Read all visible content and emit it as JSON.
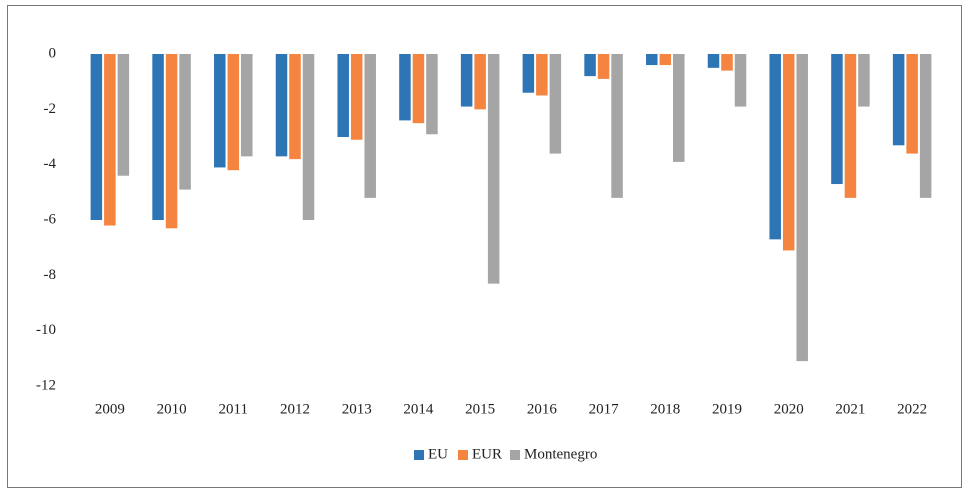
{
  "chart_data": {
    "type": "bar",
    "categories": [
      "2009",
      "2010",
      "2011",
      "2012",
      "2013",
      "2014",
      "2015",
      "2016",
      "2017",
      "2018",
      "2019",
      "2020",
      "2021",
      "2022"
    ],
    "series": [
      {
        "name": "EU",
        "color": "#2e75b6",
        "values": [
          -6.0,
          -6.0,
          -4.1,
          -3.7,
          -3.0,
          -2.4,
          -1.9,
          -1.4,
          -0.8,
          -0.4,
          -0.5,
          -6.7,
          -4.7,
          -3.3
        ]
      },
      {
        "name": "EUR",
        "color": "#f4843f",
        "values": [
          -6.2,
          -6.3,
          -4.2,
          -3.8,
          -3.1,
          -2.5,
          -2.0,
          -1.5,
          -0.9,
          -0.4,
          -0.6,
          -7.1,
          -5.2,
          -3.6
        ]
      },
      {
        "name": "Montenegro",
        "color": "#a5a5a5",
        "values": [
          -4.4,
          -4.9,
          -3.7,
          -6.0,
          -5.2,
          -2.9,
          -8.3,
          -3.6,
          -5.2,
          -3.9,
          -1.9,
          -11.1,
          -1.9,
          -5.2
        ]
      }
    ],
    "ylim": [
      -12,
      0
    ],
    "yticks": [
      0,
      -2,
      -4,
      -6,
      -8,
      -10,
      -12
    ],
    "grid": false,
    "legend": "bottom"
  }
}
